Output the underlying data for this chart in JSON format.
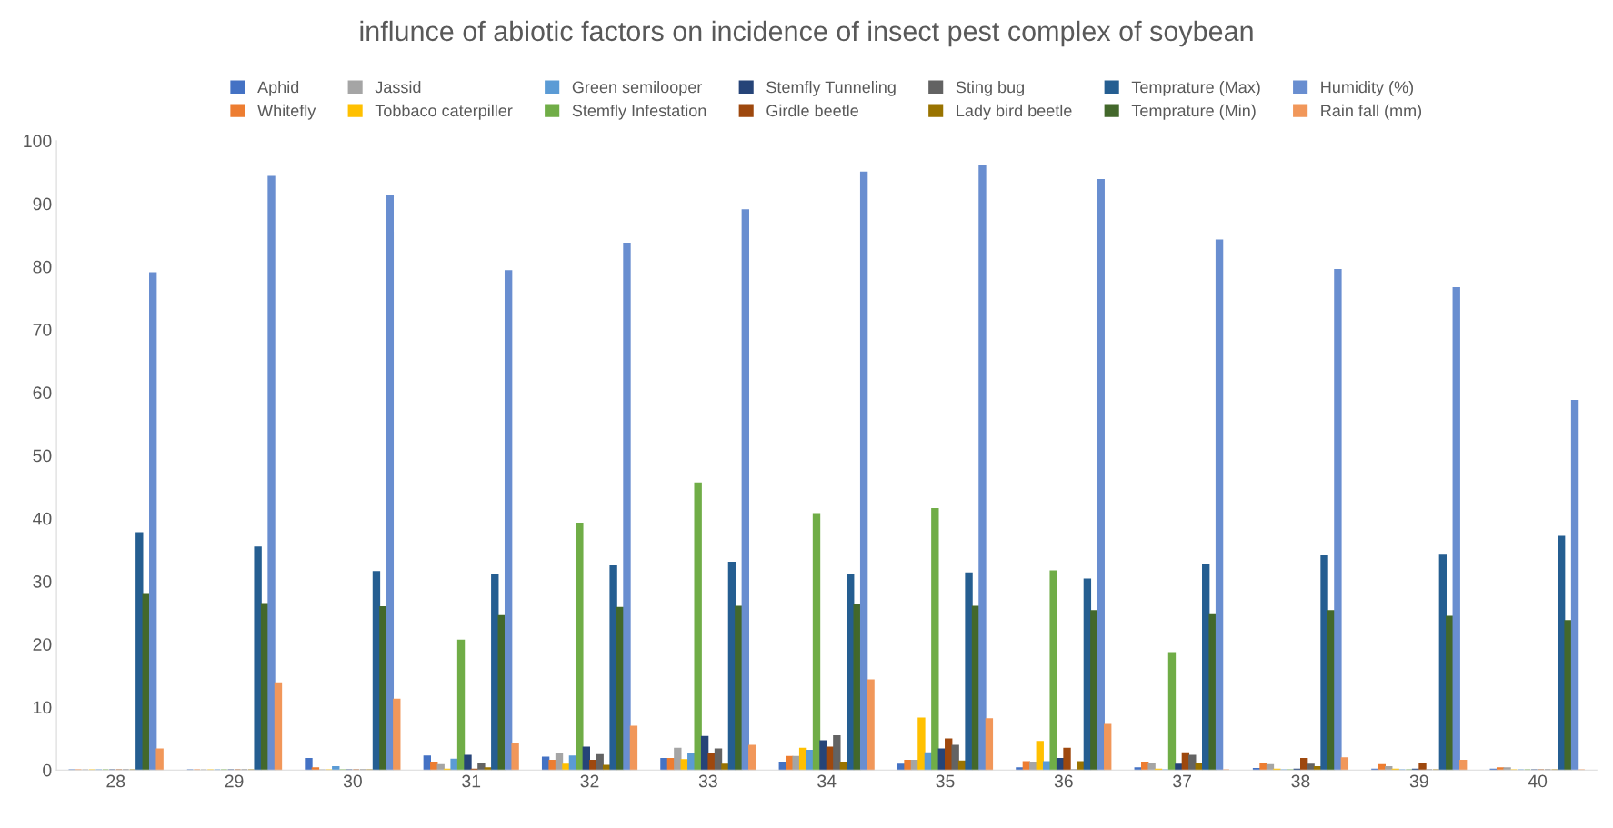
{
  "chart_data": {
    "type": "bar",
    "title": "influnce of abiotic factors on incidence of insect pest complex of soybean",
    "categories": [
      "28",
      "29",
      "30",
      "31",
      "32",
      "33",
      "34",
      "35",
      "36",
      "37",
      "38",
      "39",
      "40"
    ],
    "ylim": [
      0,
      100
    ],
    "yticks": [
      0,
      10,
      20,
      30,
      40,
      50,
      60,
      70,
      80,
      90,
      100
    ],
    "grid": false,
    "legend": "top",
    "series": [
      {
        "name": "Aphid",
        "color": "#4472c4",
        "values": [
          0,
          0,
          1.8,
          2.2,
          2.0,
          1.8,
          1.2,
          0.9,
          0.3,
          0.3,
          0.2,
          0.1,
          0.1
        ]
      },
      {
        "name": "Whitefly",
        "color": "#ed7d31",
        "values": [
          0,
          0,
          0.3,
          1.2,
          1.5,
          1.8,
          2.1,
          1.5,
          1.3,
          1.2,
          1.0,
          0.8,
          0.3
        ]
      },
      {
        "name": "Jassid",
        "color": "#a5a5a5",
        "values": [
          0,
          0,
          0,
          0.8,
          2.6,
          3.4,
          2.1,
          1.5,
          1.2,
          1.0,
          0.8,
          0.5,
          0.3
        ]
      },
      {
        "name": "Tobbaco caterpiller",
        "color": "#ffc000",
        "values": [
          0,
          0,
          0,
          0.1,
          0.9,
          1.6,
          3.4,
          8.2,
          4.5,
          0.1,
          0.1,
          0.1,
          0
        ]
      },
      {
        "name": "Green semilooper",
        "color": "#5b9bd5",
        "values": [
          0,
          0,
          0.5,
          1.7,
          2.2,
          2.6,
          3.1,
          2.7,
          1.3,
          0,
          0,
          0,
          0
        ]
      },
      {
        "name": "Stemfly Infestation",
        "color": "#70ad47",
        "values": [
          0,
          0,
          0,
          20.6,
          39.2,
          45.6,
          40.7,
          41.5,
          31.6,
          18.6,
          0,
          0,
          0
        ]
      },
      {
        "name": "Stemfly Tunneling",
        "color": "#264478",
        "values": [
          0,
          0,
          0,
          2.3,
          3.6,
          5.3,
          4.6,
          3.3,
          1.8,
          0.9,
          0.1,
          0.1,
          0
        ]
      },
      {
        "name": "Girdle beetle",
        "color": "#9e480e",
        "values": [
          0,
          0,
          0,
          0.1,
          1.5,
          2.5,
          3.6,
          4.9,
          3.4,
          2.7,
          1.8,
          1.0,
          0
        ]
      },
      {
        "name": "Sting bug",
        "color": "#636363",
        "values": [
          0,
          0,
          0,
          1.0,
          2.4,
          3.3,
          5.4,
          3.9,
          0,
          2.3,
          0.9,
          0,
          0
        ]
      },
      {
        "name": "Lady bird beetle",
        "color": "#997300",
        "values": [
          0,
          0,
          0,
          0.3,
          0.7,
          0.9,
          1.2,
          1.4,
          1.3,
          1.0,
          0.5,
          0,
          0
        ]
      },
      {
        "name": "Temprature (Max)",
        "color": "#255e91",
        "values": [
          37.7,
          35.4,
          31.5,
          31.0,
          32.4,
          33.0,
          31.0,
          31.3,
          30.3,
          32.7,
          34.0,
          34.1,
          37.1
        ]
      },
      {
        "name": "Temprature (Min)",
        "color": "#43682b",
        "values": [
          28.0,
          26.4,
          25.9,
          24.5,
          25.8,
          26.0,
          26.2,
          26.0,
          25.3,
          24.8,
          25.3,
          24.4,
          23.7
        ]
      },
      {
        "name": "Humidity (%)",
        "color": "#698ed0",
        "values": [
          79.0,
          94.3,
          91.2,
          79.3,
          83.7,
          89.0,
          95.0,
          96.0,
          93.8,
          84.2,
          79.5,
          76.6,
          58.7
        ]
      },
      {
        "name": "Rain fall (mm)",
        "color": "#f1975a",
        "values": [
          3.3,
          13.8,
          11.2,
          4.1,
          6.9,
          3.9,
          14.3,
          8.1,
          7.2,
          0,
          1.9,
          1.5,
          0
        ]
      }
    ]
  }
}
